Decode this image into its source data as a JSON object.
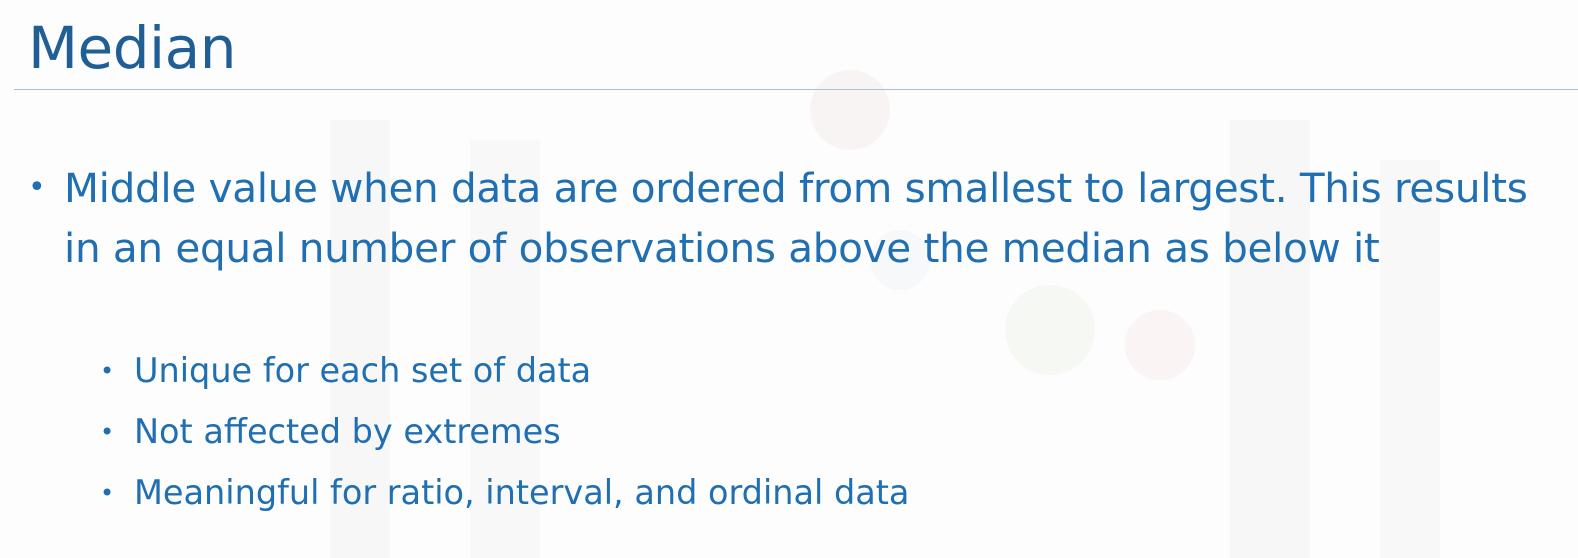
{
  "slide": {
    "title": "Median",
    "bullets": [
      {
        "marker": "•",
        "text": "Middle value when data are ordered from smallest to largest.  This results in an equal number of observations above the median as below it",
        "sub_bullets": [
          {
            "marker": "•",
            "text": "Unique for each set of data"
          },
          {
            "marker": "•",
            "text": "Not affected by extremes"
          },
          {
            "marker": "•",
            "text": "Meaningful for ratio, interval, and ordinal data"
          }
        ]
      }
    ]
  },
  "colors": {
    "title": "#1f5f96",
    "body_text": "#1f6fb2",
    "title_rule": "#a9bfd8",
    "background": "#fdfdfd"
  }
}
